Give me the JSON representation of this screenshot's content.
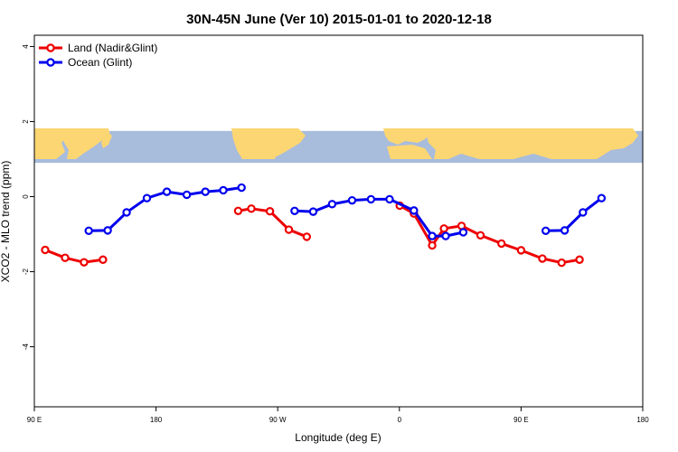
{
  "chart_data": {
    "type": "line",
    "title": "30N-45N June (Ver 10)   2015-01-01 to 2020-12-18",
    "xlabel": "Longitude (deg E)",
    "ylabel": "XCO2 - MLO trend (ppm)",
    "xlim": [
      90,
      450
    ],
    "ylim": [
      -5.6,
      4.3
    ],
    "x_ticks": [
      {
        "value": 90,
        "label": "90 E"
      },
      {
        "value": 162,
        "label": "180"
      },
      {
        "value": 234,
        "label": "90 W"
      },
      {
        "value": 306,
        "label": "0"
      },
      {
        "value": 378,
        "label": "90 E"
      },
      {
        "value": 450,
        "label": "180"
      }
    ],
    "y_ticks": [
      {
        "value": 4,
        "label": "4"
      },
      {
        "value": 2,
        "label": "2"
      },
      {
        "value": 0,
        "label": "0"
      },
      {
        "value": -2,
        "label": "-2"
      },
      {
        "value": -4,
        "label": "-4"
      }
    ],
    "grid": false,
    "legend_position": "top-left",
    "map_band": {
      "y_range": [
        0.9,
        1.75
      ],
      "ocean_color": "#a8bcdc",
      "land_color": "#fcd672"
    },
    "series": [
      {
        "name": "Land (Nadir&Glint)",
        "color": "#ee0000",
        "segments": [
          [
            [
              96.4,
              -1.42
            ],
            [
              108.2,
              -1.63
            ],
            [
              119.4,
              -1.75
            ],
            [
              130.6,
              -1.68
            ]
          ],
          [
            [
              210.6,
              -0.38
            ],
            [
              218.4,
              -0.32
            ],
            [
              229.4,
              -0.39
            ],
            [
              240.6,
              -0.88
            ],
            [
              251.2,
              -1.07
            ]
          ],
          [
            [
              306.2,
              -0.24
            ],
            [
              314.6,
              -0.45
            ],
            [
              325.4,
              -1.3
            ],
            [
              332.4,
              -0.85
            ],
            [
              342.8,
              -0.78
            ],
            [
              354.0,
              -1.03
            ],
            [
              366.4,
              -1.25
            ],
            [
              378.0,
              -1.43
            ],
            [
              390.6,
              -1.65
            ],
            [
              402.0,
              -1.76
            ],
            [
              412.6,
              -1.68
            ]
          ]
        ]
      },
      {
        "name": "Ocean (Glint)",
        "color": "#0000ee",
        "segments": [
          [
            [
              122.2,
              -0.91
            ],
            [
              133.4,
              -0.9
            ],
            [
              144.6,
              -0.42
            ],
            [
              156.6,
              -0.04
            ],
            [
              168.4,
              0.13
            ],
            [
              180.2,
              0.05
            ],
            [
              191.2,
              0.13
            ],
            [
              201.8,
              0.17
            ],
            [
              212.6,
              0.24
            ]
          ],
          [
            [
              244.0,
              -0.38
            ],
            [
              255.0,
              -0.4
            ],
            [
              266.2,
              -0.2
            ],
            [
              278.0,
              -0.1
            ],
            [
              289.2,
              -0.07
            ],
            [
              300.2,
              -0.07
            ],
            [
              314.6,
              -0.37
            ],
            [
              325.4,
              -1.05
            ],
            [
              333.4,
              -1.05
            ],
            [
              343.8,
              -0.95
            ]
          ],
          [
            [
              392.6,
              -0.91
            ],
            [
              403.8,
              -0.9
            ],
            [
              414.6,
              -0.42
            ],
            [
              425.6,
              -0.04
            ]
          ]
        ]
      }
    ]
  }
}
